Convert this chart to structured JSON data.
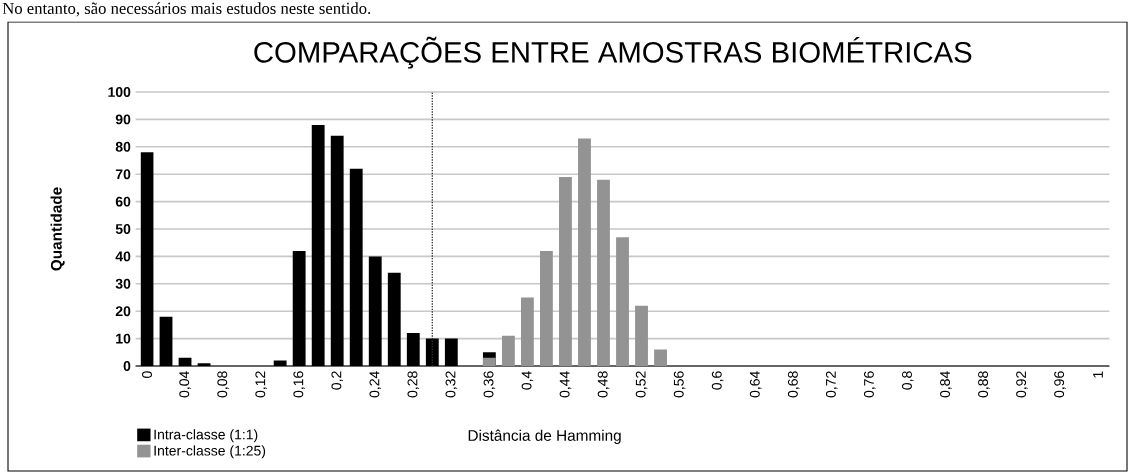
{
  "chart_data": {
    "type": "bar",
    "title": "COMPARAÇÕES ENTRE AMOSTRAS BIOMÉTRICAS",
    "xlabel": "Distância de Hamming",
    "ylabel": "Quantidade",
    "annotations": [
      "No entanto, são necessários mais estudos neste sentido."
    ],
    "series": [
      {
        "name": "Intra-classe (1:1)",
        "color": "#000000",
        "x": [
          0,
          0.02,
          0.04,
          0.06,
          0.14,
          0.16,
          0.18,
          0.2,
          0.22,
          0.24,
          0.26,
          0.28,
          0.3,
          0.32,
          0.36
        ],
        "values": [
          78,
          18,
          3,
          1,
          2,
          42,
          88,
          84,
          72,
          40,
          34,
          12,
          10,
          10,
          5
        ]
      },
      {
        "name": "Inter-classe (1:25)",
        "color": "#939393",
        "x": [
          0.36,
          0.38,
          0.4,
          0.42,
          0.44,
          0.46,
          0.48,
          0.5,
          0.52,
          0.54
        ],
        "values": [
          3,
          11,
          25,
          42,
          69,
          83,
          68,
          47,
          22,
          6
        ]
      }
    ],
    "xlim": [
      -0.012,
      1.012
    ],
    "xticks": [
      0,
      {
        "value": 0.04,
        "label": "0,04"
      },
      {
        "value": 0.08,
        "label": "0,08"
      },
      {
        "value": 0.12,
        "label": "0,12"
      },
      {
        "value": 0.16,
        "label": "0,16"
      },
      {
        "value": 0.2,
        "label": "0,2"
      },
      {
        "value": 0.24,
        "label": "0,24"
      },
      {
        "value": 0.28,
        "label": "0,28"
      },
      {
        "value": 0.32,
        "label": "0,32"
      },
      {
        "value": 0.36,
        "label": "0,36"
      },
      {
        "value": 0.4,
        "label": "0,4"
      },
      {
        "value": 0.44,
        "label": "0,44"
      },
      {
        "value": 0.48,
        "label": "0,48"
      },
      {
        "value": 0.52,
        "label": "0,52"
      },
      {
        "value": 0.56,
        "label": "0,56"
      },
      {
        "value": 0.6,
        "label": "0,6"
      },
      {
        "value": 0.64,
        "label": "0,64"
      },
      {
        "value": 0.68,
        "label": "0,68"
      },
      {
        "value": 0.72,
        "label": "0,72"
      },
      {
        "value": 0.76,
        "label": "0,76"
      },
      {
        "value": 0.8,
        "label": "0,8"
      },
      {
        "value": 0.84,
        "label": "0,84"
      },
      {
        "value": 0.88,
        "label": "0,88"
      },
      {
        "value": 0.92,
        "label": "0,92"
      },
      {
        "value": 0.96,
        "label": "0,96"
      },
      1
    ],
    "ylim": [
      0,
      100
    ],
    "yticks": [
      0,
      10,
      20,
      30,
      40,
      50,
      60,
      70,
      80,
      90,
      100
    ],
    "grid": "y",
    "legend": "bottom left",
    "ref_lines": [
      {
        "axis": "x",
        "value": 0.3,
        "line_style": "dotted"
      }
    ]
  }
}
